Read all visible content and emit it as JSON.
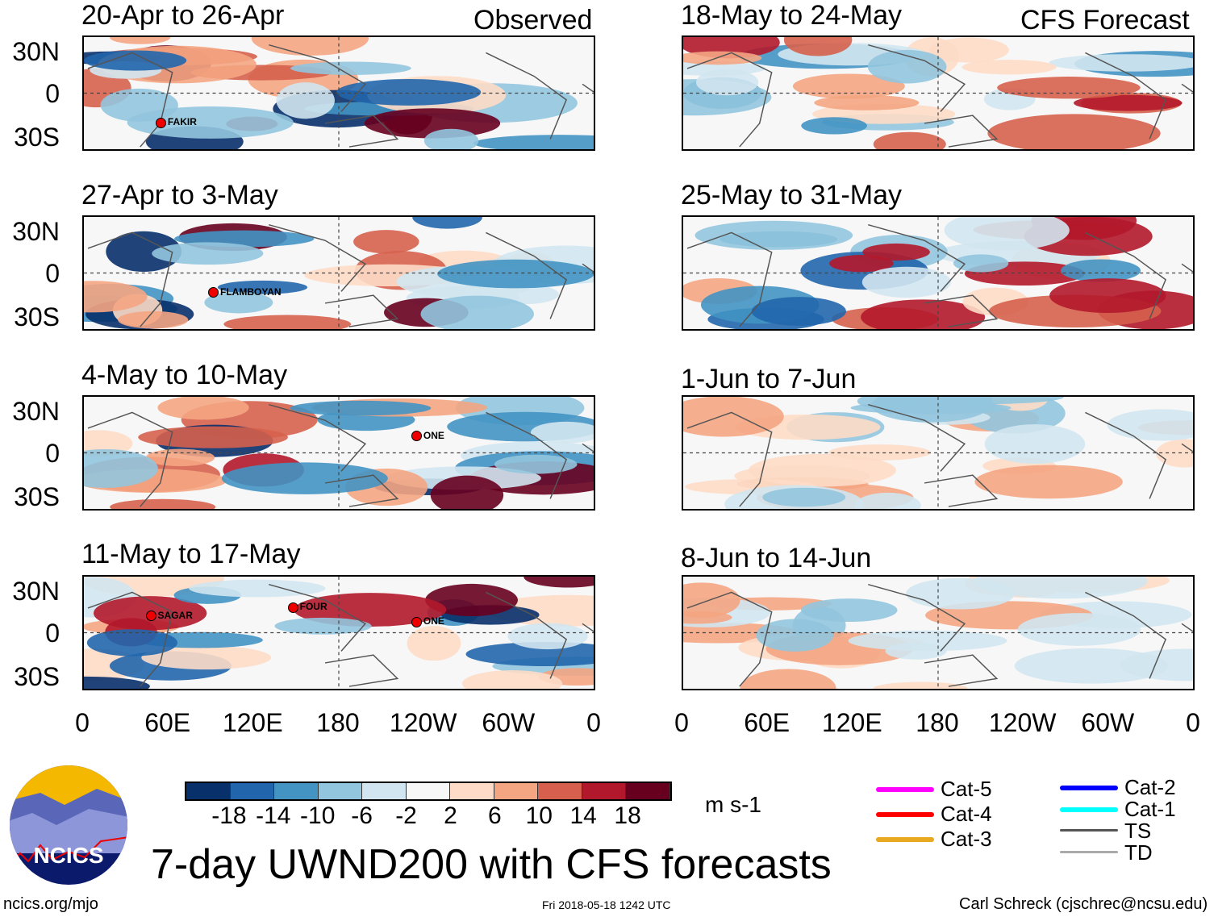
{
  "headers": {
    "left": "Observed",
    "right": "CFS Forecast"
  },
  "panels": [
    {
      "title": "20-Apr to 26-Apr",
      "column": "left",
      "row": 0,
      "storms": [
        {
          "name": "FAKIR",
          "lon": 55,
          "lat": -20
        }
      ]
    },
    {
      "title": "27-Apr to 3-May",
      "column": "left",
      "row": 1,
      "storms": [
        {
          "name": "FLAMBOYAN",
          "lon": 92,
          "lat": -13
        }
      ]
    },
    {
      "title": "4-May to 10-May",
      "column": "left",
      "row": 2,
      "storms": [
        {
          "name": "ONE",
          "lon": -125,
          "lat": 12
        }
      ]
    },
    {
      "title": "11-May to 17-May",
      "column": "left",
      "row": 3,
      "storms": [
        {
          "name": "SAGAR",
          "lon": 48,
          "lat": 12
        },
        {
          "name": "FOUR",
          "lon": 148,
          "lat": 18
        },
        {
          "name": "ONE",
          "lon": -125,
          "lat": 8
        }
      ]
    },
    {
      "title": "18-May to 24-May",
      "column": "right",
      "row": 0,
      "storms": []
    },
    {
      "title": "25-May to 31-May",
      "column": "right",
      "row": 1,
      "storms": []
    },
    {
      "title": "1-Jun to 7-Jun",
      "column": "right",
      "row": 2,
      "storms": []
    },
    {
      "title": "8-Jun to 14-Jun",
      "column": "right",
      "row": 3,
      "storms": []
    }
  ],
  "y_ticks": [
    "30N",
    "0",
    "30S"
  ],
  "x_ticks": [
    "0",
    "60E",
    "120E",
    "180",
    "120W",
    "60W",
    "0"
  ],
  "colorbar": {
    "colors": [
      "#08306b",
      "#2166ac",
      "#4393c3",
      "#92c5de",
      "#d1e5f0",
      "#f7f7f7",
      "#fddbc7",
      "#f4a582",
      "#d6604d",
      "#b2182b",
      "#67001f"
    ],
    "labels": [
      "-18",
      "-14",
      "-10",
      "-6",
      "-2",
      "2",
      "6",
      "10",
      "14",
      "18"
    ],
    "units": "m s-1"
  },
  "legend": [
    {
      "label": "Cat-5",
      "color": "#ff00ff"
    },
    {
      "label": "Cat-4",
      "color": "#ff0000"
    },
    {
      "label": "Cat-3",
      "color": "#e8a820"
    },
    {
      "label": "Cat-2",
      "color": "#0000ff"
    },
    {
      "label": "Cat-1",
      "color": "#00ffff"
    },
    {
      "label": "TS",
      "color": "#555555"
    },
    {
      "label": "TD",
      "color": "#aaaaaa"
    }
  ],
  "logo_text": "NCICS",
  "title": "7-day UWND200 with CFS forecasts",
  "footer": {
    "left": "ncics.org/mjo",
    "center": "Fri 2018-05-18 1242 UTC",
    "right": "Carl Schreck (cjschrec@ncsu.edu)"
  }
}
